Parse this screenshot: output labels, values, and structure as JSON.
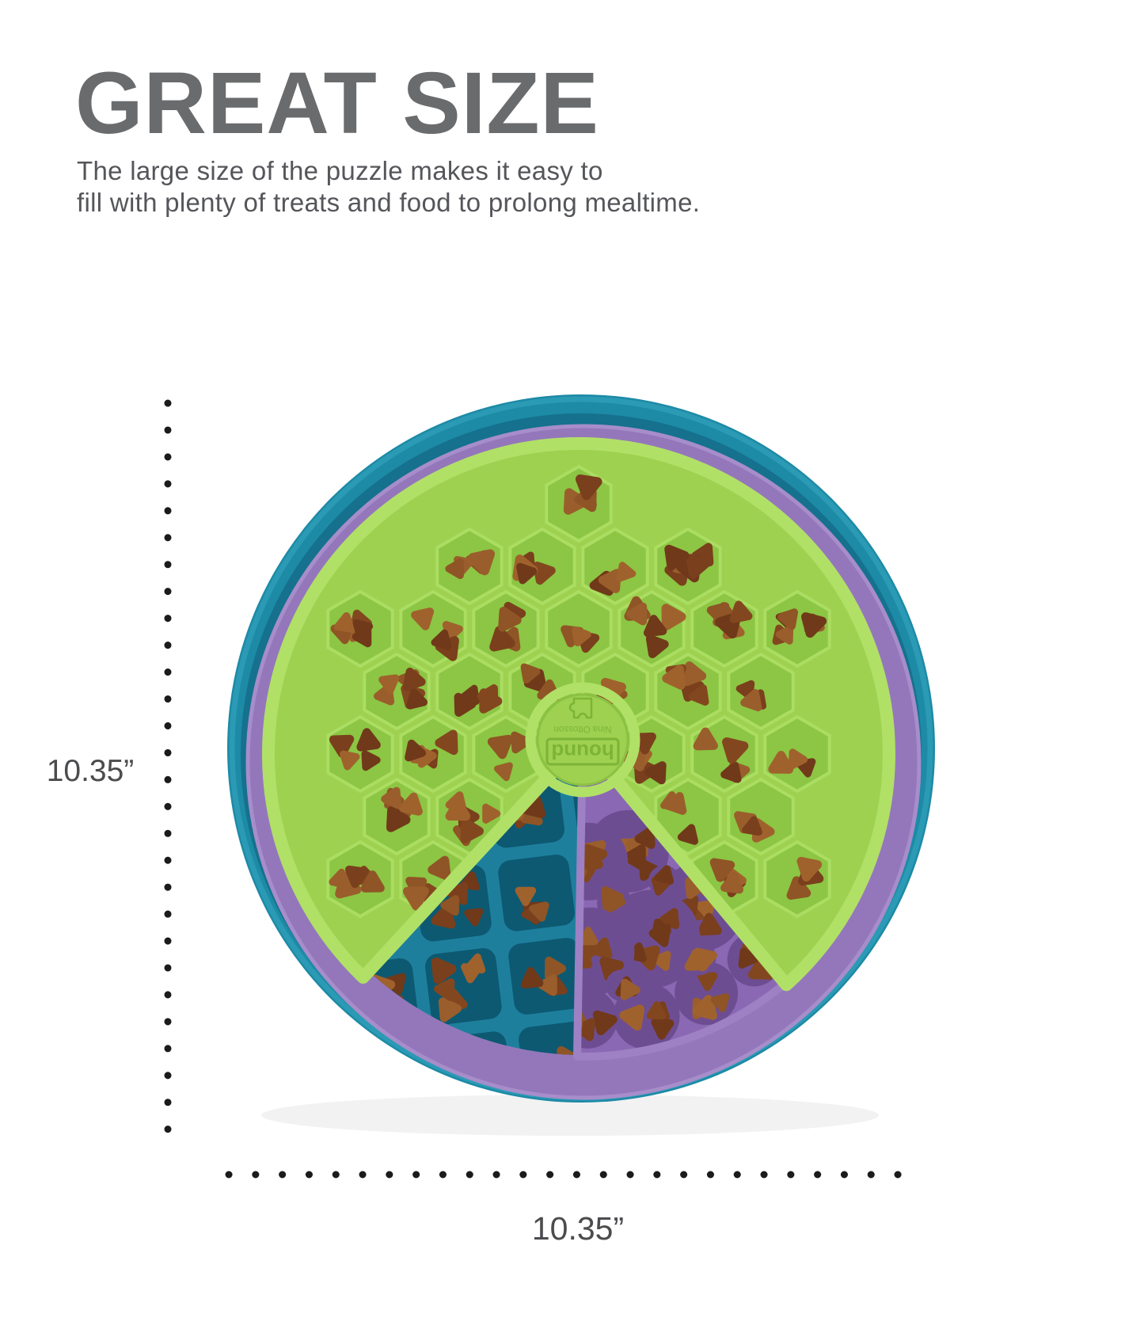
{
  "header": {
    "title": "GREAT SIZE",
    "description": "The large size of the puzzle makes it easy to\nfill with plenty of treats and food to prolong mealtime."
  },
  "dimensions": {
    "height_label": "10.35”",
    "width_label": "10.35”"
  },
  "product": {
    "name": "layered round dog puzzle feeder filled with kibble",
    "hub_logo_primary": "hound",
    "hub_logo_secondary": "Nina Ottosson",
    "colors": {
      "bowl": "#1d8aa6",
      "bowl_deep": "#15718d",
      "bowl_rim": "#2f9db8",
      "mid_layer": "#9477bb",
      "mid_layer_edge": "#a78dca",
      "tray_teal": "#1e7f9d",
      "cell_teal": "#0d5972",
      "wedge_purple": "#8a68b3",
      "wedge_purple_edge": "#9d81c4",
      "cell_purple": "#6d4d92",
      "top_green": "#9ed150",
      "green_floor": "#8cc644",
      "green_cell_edge": "#abdd62",
      "green_wall": "#b1e067",
      "green_emboss": "#7cb437",
      "dots": "#1b1b1b",
      "kibble": [
        "#83471f",
        "#8f5526",
        "#7a3f1c",
        "#9a5e2c",
        "#70391a",
        "#a0622d"
      ]
    }
  }
}
